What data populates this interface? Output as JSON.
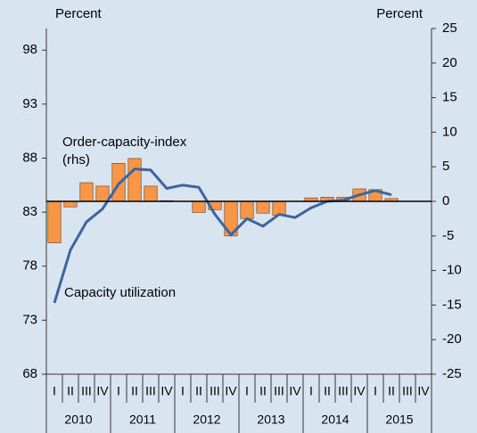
{
  "chart_data": {
    "type": "bar_line",
    "y_label": "Percent",
    "y2_label": "Percent",
    "categories": [
      "I",
      "II",
      "III",
      "IV",
      "I",
      "II",
      "III",
      "IV",
      "I",
      "II",
      "III",
      "IV",
      "I",
      "II",
      "III",
      "IV",
      "I",
      "II",
      "III",
      "IV",
      "I",
      "II",
      "III",
      "IV"
    ],
    "years": [
      "2010",
      "2011",
      "2012",
      "2013",
      "2014",
      "2015"
    ],
    "series": [
      {
        "name": "Order-capacity-index (rhs)",
        "label_lines": [
          "Order-capacity-index",
          "(rhs)"
        ],
        "type": "bar",
        "axis": "y2",
        "color": "#f79646",
        "values": [
          -6,
          -0.8,
          2.7,
          2.2,
          5.5,
          6.2,
          2.2,
          0.1,
          0,
          -1.6,
          -1.2,
          -5,
          -2.5,
          -1.7,
          -2,
          0,
          0.5,
          0.6,
          0.6,
          1.8,
          1.7,
          0.4,
          null,
          null
        ]
      },
      {
        "name": "Capacity utilization",
        "type": "line",
        "axis": "y",
        "color": "#3c64a0",
        "values": [
          74.6,
          79.5,
          82.1,
          83.3,
          85.6,
          87.0,
          86.9,
          85.2,
          85.5,
          85.3,
          82.8,
          80.9,
          82.4,
          81.7,
          82.8,
          82.5,
          83.4,
          84.0,
          84.1,
          84.6,
          85.0,
          84.6,
          null,
          null
        ]
      }
    ],
    "ylim": [
      68,
      100
    ],
    "yticks": [
      68,
      73,
      78,
      83,
      88,
      93,
      98
    ],
    "y2lim": [
      -25,
      25
    ],
    "y2ticks": [
      -25,
      -20,
      -15,
      -10,
      -5,
      0,
      5,
      10,
      15,
      20,
      25
    ]
  }
}
